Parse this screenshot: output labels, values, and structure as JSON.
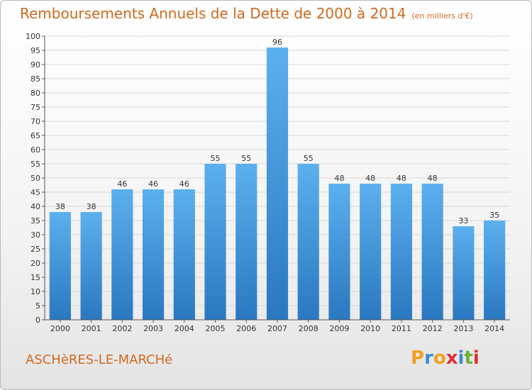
{
  "header": {
    "title": "Remboursements Annuels de la Dette de 2000 à 2014",
    "subtitle": "(en milliers d'€)"
  },
  "footer": {
    "commune": "ASCHèRES-LE-MARCHé",
    "logo": {
      "letters": [
        "P",
        "r",
        "o",
        "x",
        "i",
        "t",
        "i"
      ],
      "colors": [
        "#f0a020",
        "#3a8ad8",
        "#f0a020",
        "#e03030",
        "#3a8ad8",
        "#70b030",
        "#e03030"
      ]
    }
  },
  "chart_data": {
    "type": "bar",
    "title": "Remboursements Annuels de la Dette de 2000 à 2014",
    "categories": [
      "2000",
      "2001",
      "2002",
      "2003",
      "2004",
      "2005",
      "2006",
      "2007",
      "2008",
      "2009",
      "2010",
      "2011",
      "2012",
      "2013",
      "2014"
    ],
    "values": [
      38,
      38,
      46,
      46,
      46,
      55,
      55,
      96,
      55,
      48,
      48,
      48,
      48,
      33,
      35
    ],
    "ylim": [
      0,
      100
    ],
    "yticks": [
      0,
      5,
      10,
      15,
      20,
      25,
      30,
      35,
      40,
      45,
      50,
      55,
      60,
      65,
      70,
      75,
      80,
      85,
      90,
      95,
      100
    ],
    "grid": true,
    "bar_color": "#3d8fd6"
  }
}
